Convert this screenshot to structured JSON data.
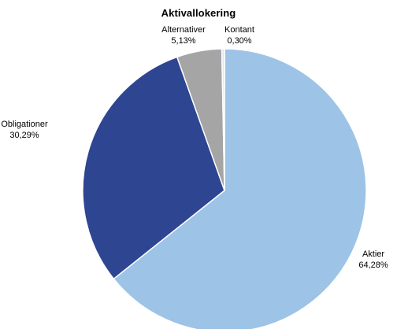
{
  "chart_data": {
    "type": "pie",
    "title": "Aktivallokering",
    "slices": [
      {
        "label": "Aktier",
        "value_text": "64,28%",
        "value": 64.28,
        "color": "#9dc3e6"
      },
      {
        "label": "Obligationer",
        "value_text": "30,29%",
        "value": 30.29,
        "color": "#2e4592"
      },
      {
        "label": "Alternativer",
        "value_text": "5,13%",
        "value": 5.13,
        "color": "#a5a5a5"
      },
      {
        "label": "Kontant",
        "value_text": "0,30%",
        "value": 0.3,
        "color": "#dbe7f3"
      }
    ]
  }
}
